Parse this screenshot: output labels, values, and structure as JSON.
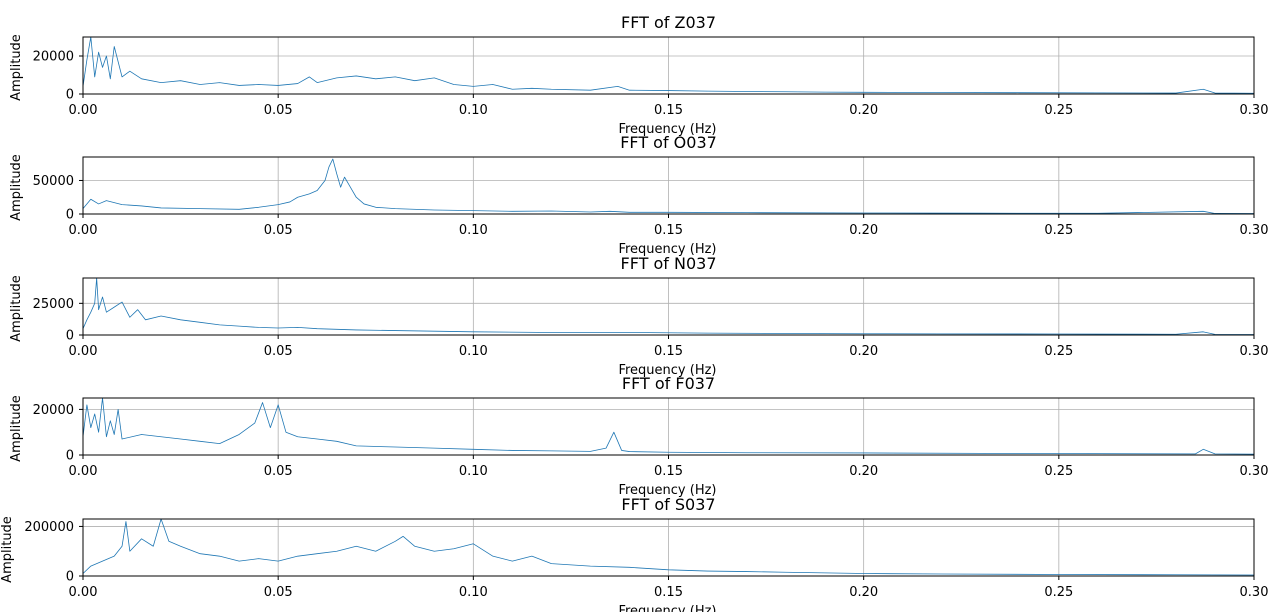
{
  "colors": {
    "series": "#1f77b4",
    "grid": "#b0b0b0",
    "axes": "#000000"
  },
  "chart_data": [
    {
      "type": "line",
      "title": "FFT of Z037",
      "xlabel": "Frequency (Hz)",
      "ylabel": "Amplitude",
      "xlim": [
        0,
        0.3
      ],
      "ylim": [
        0,
        30000
      ],
      "xticks": [
        0,
        0.05,
        0.1,
        0.15,
        0.2,
        0.25,
        0.3
      ],
      "xtick_labels": [
        "0.00",
        "0.05",
        "0.10",
        "0.15",
        "0.20",
        "0.25",
        "0.30"
      ],
      "yticks": [
        0,
        20000
      ],
      "ytick_labels": [
        "0",
        "20000"
      ],
      "grid": true,
      "series": [
        {
          "x": [
            0,
            0.001,
            0.002,
            0.003,
            0.004,
            0.005,
            0.006,
            0.007,
            0.008,
            0.01,
            0.012,
            0.015,
            0.02,
            0.025,
            0.03,
            0.035,
            0.04,
            0.045,
            0.05,
            0.055,
            0.058,
            0.06,
            0.065,
            0.07,
            0.075,
            0.08,
            0.085,
            0.09,
            0.095,
            0.1,
            0.105,
            0.11,
            0.115,
            0.12,
            0.13,
            0.137,
            0.14,
            0.15,
            0.16,
            0.17,
            0.18,
            0.19,
            0.2,
            0.22,
            0.24,
            0.26,
            0.28,
            0.287,
            0.29,
            0.3
          ],
          "y": [
            4000,
            18000,
            30000,
            9000,
            22000,
            14000,
            20000,
            8000,
            25000,
            9000,
            12000,
            8000,
            6000,
            7000,
            5000,
            6000,
            4500,
            5000,
            4500,
            5500,
            9000,
            6000,
            8500,
            9500,
            8000,
            9000,
            7000,
            8500,
            5000,
            4000,
            5000,
            2500,
            3000,
            2500,
            2000,
            4000,
            2000,
            1800,
            1500,
            1300,
            1200,
            1000,
            900,
            800,
            700,
            600,
            500,
            2500,
            500,
            400
          ]
        }
      ]
    },
    {
      "type": "line",
      "title": "FFT of O037",
      "xlabel": "Frequency (Hz)",
      "ylabel": "Amplitude",
      "xlim": [
        0,
        0.3
      ],
      "ylim": [
        0,
        85000
      ],
      "xticks": [
        0,
        0.05,
        0.1,
        0.15,
        0.2,
        0.25,
        0.3
      ],
      "xtick_labels": [
        "0.00",
        "0.05",
        "0.10",
        "0.15",
        "0.20",
        "0.25",
        "0.30"
      ],
      "yticks": [
        0,
        50000
      ],
      "ytick_labels": [
        "0",
        "50000"
      ],
      "grid": true,
      "series": [
        {
          "x": [
            0,
            0.002,
            0.004,
            0.006,
            0.01,
            0.015,
            0.02,
            0.03,
            0.04,
            0.045,
            0.05,
            0.053,
            0.055,
            0.058,
            0.06,
            0.062,
            0.063,
            0.064,
            0.065,
            0.066,
            0.067,
            0.068,
            0.069,
            0.07,
            0.072,
            0.075,
            0.08,
            0.09,
            0.1,
            0.11,
            0.12,
            0.13,
            0.135,
            0.14,
            0.15,
            0.17,
            0.2,
            0.23,
            0.26,
            0.287,
            0.29,
            0.3
          ],
          "y": [
            8000,
            22000,
            15000,
            20000,
            14000,
            12000,
            9000,
            8000,
            7000,
            10000,
            14000,
            18000,
            25000,
            30000,
            35000,
            50000,
            70000,
            82000,
            60000,
            40000,
            55000,
            45000,
            35000,
            25000,
            15000,
            10000,
            8000,
            6000,
            5000,
            4000,
            4500,
            3000,
            4000,
            2500,
            2500,
            2000,
            1500,
            1200,
            1000,
            4000,
            800,
            700
          ]
        }
      ]
    },
    {
      "type": "line",
      "title": "FFT of N037",
      "xlabel": "Frequency (Hz)",
      "ylabel": "Amplitude",
      "xlim": [
        0,
        0.3
      ],
      "ylim": [
        0,
        45000
      ],
      "xticks": [
        0,
        0.05,
        0.1,
        0.15,
        0.2,
        0.25,
        0.3
      ],
      "xtick_labels": [
        "0.00",
        "0.05",
        "0.10",
        "0.15",
        "0.20",
        "0.25",
        "0.30"
      ],
      "yticks": [
        0,
        25000
      ],
      "ytick_labels": [
        "0",
        "25000"
      ],
      "grid": true,
      "series": [
        {
          "x": [
            0,
            0.001,
            0.002,
            0.003,
            0.0035,
            0.004,
            0.005,
            0.006,
            0.008,
            0.01,
            0.012,
            0.014,
            0.016,
            0.02,
            0.025,
            0.03,
            0.035,
            0.04,
            0.045,
            0.05,
            0.055,
            0.06,
            0.07,
            0.08,
            0.09,
            0.1,
            0.12,
            0.14,
            0.16,
            0.18,
            0.2,
            0.22,
            0.25,
            0.28,
            0.287,
            0.29,
            0.3
          ],
          "y": [
            5000,
            12000,
            18000,
            25000,
            45000,
            20000,
            30000,
            18000,
            22000,
            26000,
            14000,
            20000,
            12000,
            15000,
            12000,
            10000,
            8000,
            7000,
            6000,
            5500,
            6000,
            5000,
            4000,
            3500,
            3000,
            2500,
            2000,
            2000,
            1500,
            1200,
            1000,
            900,
            800,
            600,
            2500,
            500,
            400
          ]
        }
      ]
    },
    {
      "type": "line",
      "title": "FFT of F037",
      "xlabel": "Frequency (Hz)",
      "ylabel": "Amplitude",
      "xlim": [
        0,
        0.3
      ],
      "ylim": [
        0,
        25000
      ],
      "xticks": [
        0,
        0.05,
        0.1,
        0.15,
        0.2,
        0.25,
        0.3
      ],
      "xtick_labels": [
        "0.00",
        "0.05",
        "0.10",
        "0.15",
        "0.20",
        "0.25",
        "0.30"
      ],
      "yticks": [
        0,
        20000
      ],
      "ytick_labels": [
        "0",
        "20000"
      ],
      "grid": true,
      "series": [
        {
          "x": [
            0,
            0.001,
            0.002,
            0.003,
            0.004,
            0.005,
            0.006,
            0.007,
            0.008,
            0.009,
            0.01,
            0.015,
            0.02,
            0.025,
            0.03,
            0.035,
            0.04,
            0.044,
            0.046,
            0.048,
            0.05,
            0.052,
            0.055,
            0.06,
            0.065,
            0.07,
            0.08,
            0.09,
            0.1,
            0.11,
            0.12,
            0.13,
            0.134,
            0.136,
            0.138,
            0.14,
            0.15,
            0.17,
            0.2,
            0.23,
            0.26,
            0.285,
            0.287,
            0.29,
            0.3
          ],
          "y": [
            8000,
            22000,
            12000,
            18000,
            10000,
            25000,
            8000,
            15000,
            9000,
            20000,
            7000,
            9000,
            8000,
            7000,
            6000,
            5000,
            9000,
            14000,
            23000,
            12000,
            22000,
            10000,
            8000,
            7000,
            6000,
            4000,
            3500,
            3000,
            2500,
            2000,
            1800,
            1600,
            3000,
            10000,
            2000,
            1500,
            1200,
            1000,
            900,
            700,
            600,
            500,
            2500,
            500,
            400
          ]
        }
      ]
    },
    {
      "type": "line",
      "title": "FFT of S037",
      "xlabel": "Frequency (Hz)",
      "ylabel": "Amplitude",
      "xlim": [
        0,
        0.3
      ],
      "ylim": [
        0,
        230000
      ],
      "xticks": [
        0,
        0.05,
        0.1,
        0.15,
        0.2,
        0.25,
        0.3
      ],
      "xtick_labels": [
        "0.00",
        "0.05",
        "0.10",
        "0.15",
        "0.20",
        "0.25",
        "0.30"
      ],
      "yticks": [
        0,
        200000
      ],
      "ytick_labels": [
        "0",
        "200000"
      ],
      "grid": true,
      "series": [
        {
          "x": [
            0,
            0.002,
            0.005,
            0.008,
            0.01,
            0.011,
            0.012,
            0.015,
            0.018,
            0.02,
            0.022,
            0.025,
            0.03,
            0.035,
            0.04,
            0.045,
            0.05,
            0.055,
            0.06,
            0.065,
            0.07,
            0.075,
            0.08,
            0.082,
            0.085,
            0.09,
            0.095,
            0.1,
            0.105,
            0.11,
            0.115,
            0.12,
            0.13,
            0.14,
            0.15,
            0.16,
            0.17,
            0.18,
            0.2,
            0.22,
            0.25,
            0.28,
            0.3
          ],
          "y": [
            10000,
            40000,
            60000,
            80000,
            120000,
            220000,
            100000,
            150000,
            120000,
            230000,
            140000,
            120000,
            90000,
            80000,
            60000,
            70000,
            60000,
            80000,
            90000,
            100000,
            120000,
            100000,
            140000,
            160000,
            120000,
            100000,
            110000,
            130000,
            80000,
            60000,
            80000,
            50000,
            40000,
            35000,
            25000,
            20000,
            18000,
            15000,
            10000,
            8000,
            6000,
            5000,
            4000
          ]
        }
      ]
    }
  ]
}
